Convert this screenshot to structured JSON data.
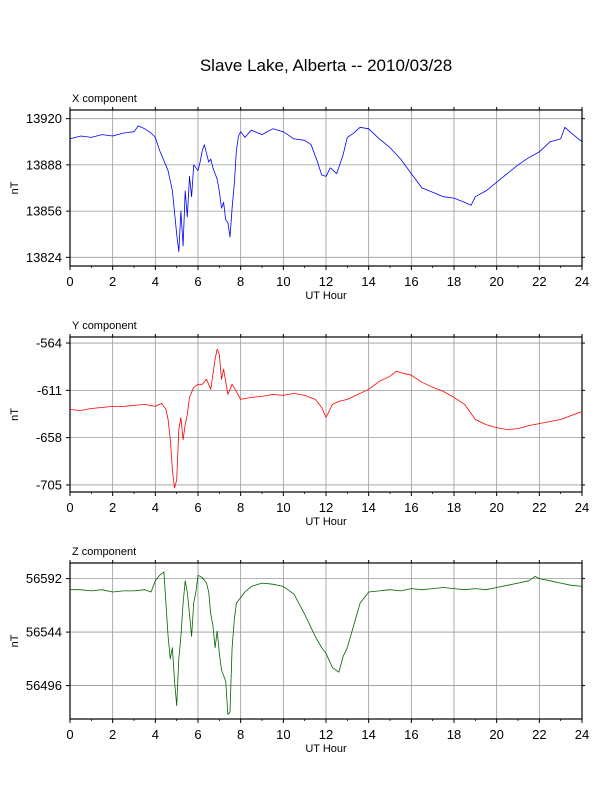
{
  "title": "Slave Lake, Alberta -- 2010/03/28",
  "chart_data": [
    {
      "type": "line",
      "panel_title": "X component",
      "xlabel": "UT Hour",
      "ylabel": "nT",
      "xlim": [
        0,
        24
      ],
      "ylim": [
        13818,
        13926
      ],
      "xticks": [
        0,
        2,
        4,
        6,
        8,
        10,
        12,
        14,
        16,
        18,
        20,
        22,
        24
      ],
      "yticks": [
        13824,
        13856,
        13888,
        13920
      ],
      "grid": true,
      "color": "#0000ff",
      "series": [
        {
          "x": [
            0,
            0.5,
            1,
            1.5,
            2,
            2.5,
            3,
            3.2,
            3.5,
            3.8,
            4,
            4.2,
            4.4,
            4.6,
            4.8,
            5,
            5.1,
            5.2,
            5.3,
            5.4,
            5.5,
            5.6,
            5.7,
            5.8,
            5.9,
            6,
            6.1,
            6.2,
            6.3,
            6.4,
            6.5,
            6.6,
            6.7,
            6.8,
            6.9,
            7,
            7.1,
            7.2,
            7.3,
            7.4,
            7.5,
            7.6,
            7.7,
            7.8,
            7.9,
            8,
            8.2,
            8.5,
            9,
            9.5,
            10,
            10.5,
            11,
            11.3,
            11.6,
            11.8,
            12,
            12.2,
            12.5,
            12.8,
            13,
            13.3,
            13.6,
            14,
            14.5,
            15,
            15.5,
            16,
            16.5,
            17,
            17.5,
            18,
            18.5,
            18.8,
            19,
            19.5,
            20,
            20.5,
            21,
            21.5,
            22,
            22.5,
            23,
            23.2,
            23.5,
            24
          ],
          "y": [
            13906,
            13908,
            13907,
            13909,
            13908,
            13910,
            13911,
            13915,
            13913,
            13910,
            13907,
            13898,
            13891,
            13884,
            13870,
            13840,
            13828,
            13856,
            13832,
            13870,
            13852,
            13880,
            13866,
            13888,
            13886,
            13884,
            13890,
            13898,
            13902,
            13896,
            13890,
            13892,
            13886,
            13882,
            13878,
            13870,
            13858,
            13862,
            13850,
            13848,
            13838,
            13858,
            13875,
            13898,
            13908,
            13911,
            13907,
            13912,
            13909,
            13913,
            13911,
            13906,
            13905,
            13902,
            13890,
            13881,
            13880,
            13886,
            13882,
            13895,
            13907,
            13910,
            13914,
            13913,
            13906,
            13900,
            13892,
            13882,
            13872,
            13869,
            13866,
            13865,
            13862,
            13860,
            13866,
            13870,
            13876,
            13882,
            13888,
            13893,
            13897,
            13904,
            13906,
            13914,
            13910,
            13904
          ]
        }
      ]
    },
    {
      "type": "line",
      "panel_title": "Y component",
      "xlabel": "UT Hour",
      "ylabel": "nT",
      "xlim": [
        0,
        24
      ],
      "ylim": [
        -712,
        -558
      ],
      "xticks": [
        0,
        2,
        4,
        6,
        8,
        10,
        12,
        14,
        16,
        18,
        20,
        22,
        24
      ],
      "yticks": [
        -564,
        -611,
        -658,
        -705
      ],
      "grid": true,
      "color": "#ff0000",
      "series": [
        {
          "x": [
            0,
            0.5,
            1,
            1.5,
            2,
            2.5,
            3,
            3.5,
            4,
            4.3,
            4.5,
            4.6,
            4.7,
            4.8,
            4.9,
            5,
            5.1,
            5.2,
            5.3,
            5.4,
            5.5,
            5.6,
            5.8,
            6,
            6.2,
            6.4,
            6.6,
            6.8,
            6.9,
            7,
            7.1,
            7.2,
            7.4,
            7.6,
            7.8,
            8,
            8.5,
            9,
            9.5,
            10,
            10.5,
            11,
            11.5,
            11.8,
            12,
            12.3,
            12.6,
            13,
            13.5,
            14,
            14.5,
            15,
            15.3,
            15.6,
            16,
            16.5,
            17,
            17.5,
            18,
            18.5,
            19,
            19.5,
            20,
            20.5,
            21,
            21.5,
            22,
            22.5,
            23,
            23.5,
            24
          ],
          "y": [
            -630,
            -631,
            -629,
            -628,
            -627,
            -627,
            -626,
            -625,
            -627,
            -624,
            -630,
            -640,
            -660,
            -690,
            -708,
            -700,
            -650,
            -638,
            -660,
            -645,
            -635,
            -618,
            -608,
            -605,
            -605,
            -600,
            -610,
            -580,
            -570,
            -575,
            -600,
            -590,
            -615,
            -605,
            -612,
            -620,
            -618,
            -617,
            -615,
            -616,
            -614,
            -616,
            -620,
            -628,
            -638,
            -625,
            -622,
            -620,
            -615,
            -610,
            -602,
            -597,
            -592,
            -594,
            -596,
            -603,
            -608,
            -612,
            -618,
            -625,
            -640,
            -645,
            -648,
            -650,
            -649,
            -646,
            -644,
            -642,
            -640,
            -636,
            -632
          ]
        }
      ]
    },
    {
      "type": "line",
      "panel_title": "Z component",
      "xlabel": "UT Hour",
      "ylabel": "nT",
      "xlim": [
        0,
        24
      ],
      "ylim": [
        56466,
        56606
      ],
      "xticks": [
        0,
        2,
        4,
        6,
        8,
        10,
        12,
        14,
        16,
        18,
        20,
        22,
        24
      ],
      "yticks": [
        56496,
        56544,
        56592
      ],
      "grid": true,
      "color": "#006400",
      "series": [
        {
          "x": [
            0,
            0.5,
            1,
            1.5,
            2,
            2.5,
            3,
            3.5,
            3.8,
            4,
            4.2,
            4.4,
            4.6,
            4.7,
            4.8,
            4.9,
            5,
            5.1,
            5.2,
            5.3,
            5.4,
            5.5,
            5.6,
            5.7,
            5.8,
            5.9,
            6,
            6.2,
            6.4,
            6.5,
            6.6,
            6.7,
            6.8,
            6.9,
            7,
            7.1,
            7.2,
            7.3,
            7.4,
            7.5,
            7.6,
            7.7,
            7.8,
            8,
            8.2,
            8.5,
            9,
            9.5,
            10,
            10.5,
            11,
            11.5,
            11.8,
            12,
            12.3,
            12.6,
            12.8,
            13,
            13.3,
            13.6,
            14,
            14.5,
            15,
            15.5,
            16,
            16.5,
            17,
            17.5,
            18,
            18.5,
            19,
            19.5,
            20,
            20.5,
            21,
            21.5,
            21.8,
            22,
            22.5,
            23,
            23.5,
            24
          ],
          "y": [
            56582,
            56582,
            56581,
            56582,
            56580,
            56581,
            56581,
            56582,
            56580,
            56590,
            56595,
            56598,
            56540,
            56520,
            56530,
            56500,
            56478,
            56520,
            56540,
            56570,
            56590,
            56580,
            56560,
            56540,
            56570,
            56580,
            56595,
            56593,
            56588,
            56580,
            56560,
            56550,
            56530,
            56545,
            56525,
            56510,
            56505,
            56500,
            56470,
            56472,
            56530,
            56555,
            56570,
            56575,
            56580,
            56585,
            56588,
            56587,
            56585,
            56578,
            56560,
            56540,
            56530,
            56525,
            56512,
            56508,
            56522,
            56530,
            56550,
            56570,
            56580,
            56581,
            56582,
            56581,
            56583,
            56582,
            56583,
            56584,
            56583,
            56582,
            56583,
            56582,
            56584,
            56586,
            56588,
            56590,
            56594,
            56592,
            56590,
            56588,
            56586,
            56585
          ]
        }
      ]
    }
  ]
}
